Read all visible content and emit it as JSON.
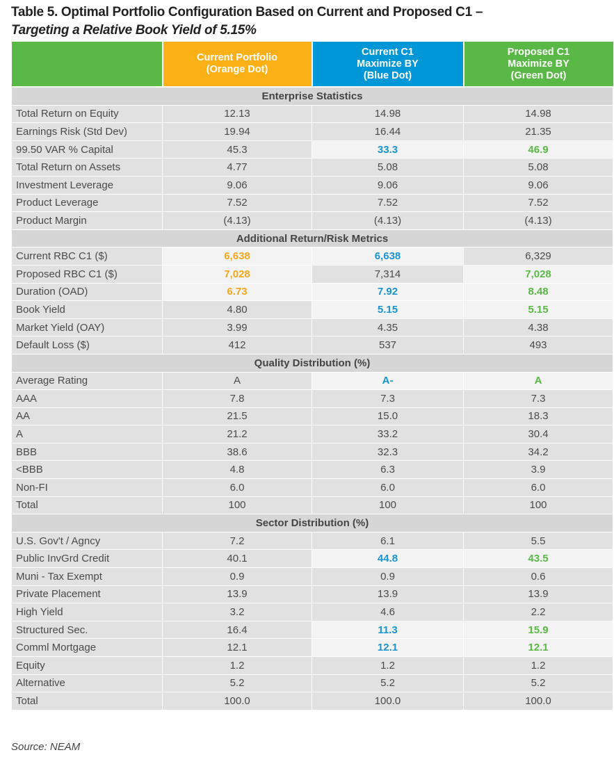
{
  "title": {
    "line1": "Table 5. Optimal Portfolio Configuration Based on Current and Proposed C1 –",
    "line2": "Targeting a Relative Book Yield of 5.15%"
  },
  "colors": {
    "orange": "#fbb116",
    "blue": "#0097d9",
    "green": "#5ab946"
  },
  "headers": [
    [
      ""
    ],
    [
      "Current Portfolio",
      "(Orange Dot)"
    ],
    [
      "Current C1",
      "Maximize BY",
      "(Blue Dot)"
    ],
    [
      "Proposed C1",
      "Maximize BY",
      "(Green Dot)"
    ]
  ],
  "sections": [
    {
      "title": "Enterprise Statistics",
      "rows": [
        {
          "label": "Total Return on Equity",
          "cells": [
            {
              "v": "12.13"
            },
            {
              "v": "14.98"
            },
            {
              "v": "14.98"
            }
          ]
        },
        {
          "label": "Earnings Risk (Std Dev)",
          "cells": [
            {
              "v": "19.94"
            },
            {
              "v": "16.44"
            },
            {
              "v": "21.35"
            }
          ]
        },
        {
          "label": "99.50 VAR % Capital",
          "cells": [
            {
              "v": "45.3"
            },
            {
              "v": "33.3",
              "c": "b"
            },
            {
              "v": "46.9",
              "c": "g"
            }
          ]
        },
        {
          "label": "Total Return on Assets",
          "cells": [
            {
              "v": "4.77"
            },
            {
              "v": "5.08"
            },
            {
              "v": "5.08"
            }
          ]
        },
        {
          "label": "Investment Leverage",
          "cells": [
            {
              "v": "9.06"
            },
            {
              "v": "9.06"
            },
            {
              "v": "9.06"
            }
          ]
        },
        {
          "label": "Product Leverage",
          "cells": [
            {
              "v": "7.52"
            },
            {
              "v": "7.52"
            },
            {
              "v": "7.52"
            }
          ]
        },
        {
          "label": "Product Margin",
          "cells": [
            {
              "v": "(4.13)"
            },
            {
              "v": "(4.13)"
            },
            {
              "v": "(4.13)"
            }
          ]
        }
      ]
    },
    {
      "title": "Additional Return/Risk Metrics",
      "rows": [
        {
          "label": "Current RBC C1 ($)",
          "cells": [
            {
              "v": "6,638",
              "c": "o"
            },
            {
              "v": "6,638",
              "c": "b"
            },
            {
              "v": "6,329"
            }
          ]
        },
        {
          "label": "Proposed RBC C1 ($)",
          "cells": [
            {
              "v": "7,028",
              "c": "o"
            },
            {
              "v": "7,314"
            },
            {
              "v": "7,028",
              "c": "g"
            }
          ]
        },
        {
          "label": "Duration (OAD)",
          "cells": [
            {
              "v": "6.73",
              "c": "o"
            },
            {
              "v": "7.92",
              "c": "b"
            },
            {
              "v": "8.48",
              "c": "g"
            }
          ]
        },
        {
          "label": "Book Yield",
          "cells": [
            {
              "v": "4.80"
            },
            {
              "v": "5.15",
              "c": "b"
            },
            {
              "v": "5.15",
              "c": "g"
            }
          ]
        },
        {
          "label": "Market Yield (OAY)",
          "cells": [
            {
              "v": "3.99"
            },
            {
              "v": "4.35"
            },
            {
              "v": "4.38"
            }
          ]
        },
        {
          "label": "Default Loss ($)",
          "cells": [
            {
              "v": "412"
            },
            {
              "v": "537"
            },
            {
              "v": "493"
            }
          ]
        }
      ]
    },
    {
      "title": "Quality Distribution (%)",
      "rows": [
        {
          "label": "Average Rating",
          "cells": [
            {
              "v": "A"
            },
            {
              "v": "A-",
              "c": "b"
            },
            {
              "v": "A",
              "c": "g"
            }
          ]
        },
        {
          "label": "AAA",
          "cells": [
            {
              "v": "7.8"
            },
            {
              "v": "7.3"
            },
            {
              "v": "7.3"
            }
          ]
        },
        {
          "label": "AA",
          "cells": [
            {
              "v": "21.5"
            },
            {
              "v": "15.0"
            },
            {
              "v": "18.3"
            }
          ]
        },
        {
          "label": "A",
          "cells": [
            {
              "v": "21.2"
            },
            {
              "v": "33.2"
            },
            {
              "v": "30.4"
            }
          ]
        },
        {
          "label": "BBB",
          "cells": [
            {
              "v": "38.6"
            },
            {
              "v": "32.3"
            },
            {
              "v": "34.2"
            }
          ]
        },
        {
          "label": "<BBB",
          "cells": [
            {
              "v": "4.8"
            },
            {
              "v": "6.3"
            },
            {
              "v": "3.9"
            }
          ]
        },
        {
          "label": "Non-FI",
          "cells": [
            {
              "v": "6.0"
            },
            {
              "v": "6.0"
            },
            {
              "v": "6.0"
            }
          ]
        },
        {
          "label": "Total",
          "cells": [
            {
              "v": "100"
            },
            {
              "v": "100"
            },
            {
              "v": "100"
            }
          ]
        }
      ]
    },
    {
      "title": "Sector Distribution (%)",
      "rows": [
        {
          "label": "U.S. Gov't / Agncy",
          "cells": [
            {
              "v": "7.2"
            },
            {
              "v": "6.1"
            },
            {
              "v": "5.5"
            }
          ]
        },
        {
          "label": "Public InvGrd Credit",
          "cells": [
            {
              "v": "40.1"
            },
            {
              "v": "44.8",
              "c": "b"
            },
            {
              "v": "43.5",
              "c": "g"
            }
          ]
        },
        {
          "label": "Muni - Tax Exempt",
          "cells": [
            {
              "v": "0.9"
            },
            {
              "v": "0.9"
            },
            {
              "v": "0.6"
            }
          ]
        },
        {
          "label": "Private Placement",
          "cells": [
            {
              "v": "13.9"
            },
            {
              "v": "13.9"
            },
            {
              "v": "13.9"
            }
          ]
        },
        {
          "label": "High Yield",
          "cells": [
            {
              "v": "3.2"
            },
            {
              "v": "4.6"
            },
            {
              "v": "2.2"
            }
          ]
        },
        {
          "label": "Structured Sec.",
          "cells": [
            {
              "v": "16.4"
            },
            {
              "v": "11.3",
              "c": "b"
            },
            {
              "v": "15.9",
              "c": "g"
            }
          ]
        },
        {
          "label": "Comml Mortgage",
          "cells": [
            {
              "v": "12.1"
            },
            {
              "v": "12.1",
              "c": "b"
            },
            {
              "v": "12.1",
              "c": "g"
            }
          ]
        },
        {
          "label": "Equity",
          "cells": [
            {
              "v": "1.2"
            },
            {
              "v": "1.2"
            },
            {
              "v": "1.2"
            }
          ]
        },
        {
          "label": "Alternative",
          "cells": [
            {
              "v": "5.2"
            },
            {
              "v": "5.2"
            },
            {
              "v": "5.2"
            }
          ]
        },
        {
          "label": "Total",
          "cells": [
            {
              "v": "100.0"
            },
            {
              "v": "100.0"
            },
            {
              "v": "100.0"
            }
          ]
        }
      ]
    }
  ],
  "source": "Source: NEAM"
}
